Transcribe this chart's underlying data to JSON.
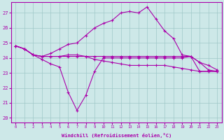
{
  "title": "",
  "xlabel": "Windchill (Refroidissement éolien,°C)",
  "ylabel": "",
  "xlim": [
    -0.5,
    23.5
  ],
  "ylim": [
    19.7,
    27.7
  ],
  "yticks": [
    20,
    21,
    22,
    23,
    24,
    25,
    26,
    27
  ],
  "xticks": [
    0,
    1,
    2,
    3,
    4,
    5,
    6,
    7,
    8,
    9,
    10,
    11,
    12,
    13,
    14,
    15,
    16,
    17,
    18,
    19,
    20,
    21,
    22,
    23
  ],
  "background_color": "#cde8e8",
  "grid_color": "#a0c8c8",
  "line_color": "#aa00aa",
  "series": {
    "line1_x": [
      0,
      1,
      2,
      3,
      4,
      5,
      6,
      7,
      8,
      9,
      10,
      11,
      12,
      13,
      14,
      15,
      16,
      17,
      18,
      19,
      20,
      21,
      22,
      23
    ],
    "line1_y": [
      24.8,
      24.6,
      24.2,
      23.9,
      23.6,
      23.4,
      21.7,
      20.5,
      21.5,
      23.1,
      24.0,
      24.0,
      24.0,
      24.0,
      24.0,
      24.0,
      24.0,
      24.0,
      24.0,
      24.0,
      24.1,
      23.1,
      23.1,
      23.1
    ],
    "line2_x": [
      0,
      1,
      2,
      3,
      4,
      5,
      6,
      7,
      8,
      9,
      10,
      11,
      12,
      13,
      14,
      15,
      16,
      17,
      18,
      19,
      20,
      21,
      22,
      23
    ],
    "line2_y": [
      24.8,
      24.6,
      24.2,
      24.1,
      24.3,
      24.6,
      24.9,
      25.0,
      25.5,
      26.0,
      26.3,
      26.5,
      27.0,
      27.1,
      27.0,
      27.4,
      26.6,
      25.8,
      25.3,
      24.2,
      24.1,
      23.7,
      23.2,
      23.1
    ],
    "line3_x": [
      0,
      1,
      2,
      3,
      4,
      5,
      6,
      7,
      8,
      9,
      10,
      11,
      12,
      13,
      14,
      15,
      16,
      17,
      18,
      19,
      20,
      21,
      22,
      23
    ],
    "line3_y": [
      24.8,
      24.6,
      24.2,
      24.1,
      24.1,
      24.1,
      24.1,
      24.1,
      24.1,
      24.1,
      24.1,
      24.1,
      24.1,
      24.1,
      24.1,
      24.1,
      24.1,
      24.1,
      24.1,
      24.1,
      24.1,
      23.7,
      23.5,
      23.2
    ],
    "line4_x": [
      0,
      1,
      2,
      3,
      4,
      5,
      6,
      7,
      8,
      9,
      10,
      11,
      12,
      13,
      14,
      15,
      16,
      17,
      18,
      19,
      20,
      21,
      22,
      23
    ],
    "line4_y": [
      24.8,
      24.6,
      24.2,
      24.1,
      24.1,
      24.1,
      24.2,
      24.2,
      24.1,
      23.9,
      23.8,
      23.7,
      23.6,
      23.5,
      23.5,
      23.5,
      23.5,
      23.5,
      23.4,
      23.3,
      23.2,
      23.1,
      23.1,
      23.1
    ]
  }
}
